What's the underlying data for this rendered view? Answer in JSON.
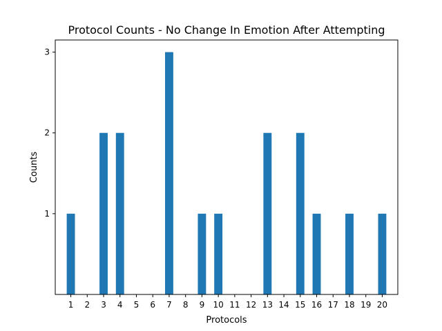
{
  "chart_data": {
    "type": "bar",
    "title": "Protocol Counts - No Change In Emotion After Attempting",
    "xlabel": "Protocols",
    "ylabel": "Counts",
    "categories": [
      "1",
      "2",
      "3",
      "4",
      "5",
      "6",
      "7",
      "8",
      "9",
      "10",
      "11",
      "12",
      "13",
      "14",
      "15",
      "16",
      "17",
      "18",
      "19",
      "20"
    ],
    "values": [
      1,
      0,
      2,
      2,
      0,
      0,
      3,
      0,
      1,
      1,
      0,
      0,
      2,
      0,
      2,
      1,
      0,
      1,
      0,
      1
    ],
    "yticks": [
      1,
      2,
      3
    ],
    "ylim": [
      0,
      3.15
    ],
    "grid": false,
    "legend": "none",
    "bar_color": "#1f77b4"
  }
}
